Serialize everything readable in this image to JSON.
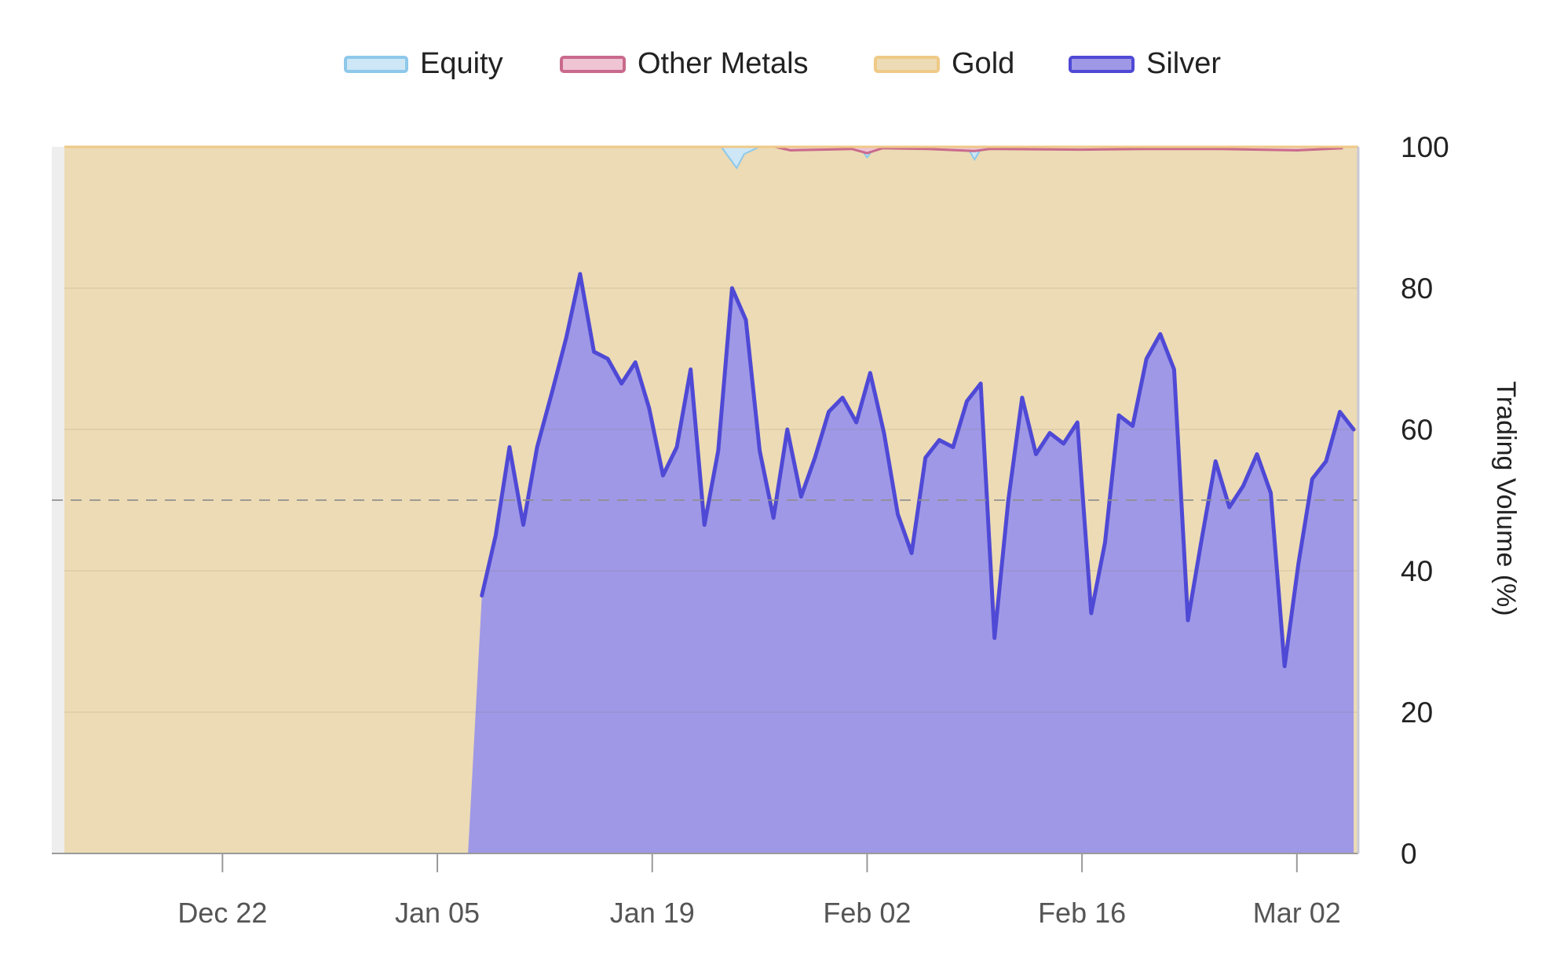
{
  "chart_data": {
    "type": "area",
    "stacked": true,
    "ylabel": "Trading Volume (%)",
    "ylim": [
      0,
      100
    ],
    "y_ticks": [
      "0",
      "20",
      "40",
      "60",
      "80",
      "100"
    ],
    "x_ticks": [
      "Dec 22",
      "Jan 05",
      "Jan 19",
      "Feb 02",
      "Feb 16",
      "Mar 02"
    ],
    "x_range": [
      "Dec 12",
      "Mar 12"
    ],
    "reference_line": 50,
    "legend_position": "top-center",
    "series": [
      {
        "name": "Equity",
        "color": "#8ec8ea",
        "fill": "#cde7f6",
        "points": [
          [
            42.5,
            0
          ],
          [
            43,
            1.5
          ],
          [
            43.5,
            3
          ],
          [
            44,
            1
          ],
          [
            45,
            0
          ],
          [
            46.5,
            0
          ],
          [
            51.5,
            0
          ],
          [
            52,
            1.5
          ],
          [
            52.5,
            0
          ],
          [
            58.5,
            0
          ],
          [
            59,
            1.8
          ],
          [
            59.5,
            0
          ],
          [
            79.5,
            0
          ],
          [
            80,
            0.6
          ],
          [
            80.5,
            0
          ]
        ]
      },
      {
        "name": "Other Metals",
        "color": "#c96a8c",
        "fill": "#efc4d3",
        "points": [
          [
            46,
            0
          ],
          [
            47,
            0.5
          ],
          [
            49,
            0.4
          ],
          [
            51,
            0.3
          ],
          [
            52,
            0.9
          ],
          [
            53,
            0.2
          ],
          [
            56,
            0.3
          ],
          [
            59,
            0.6
          ],
          [
            60,
            0.3
          ],
          [
            66,
            0.4
          ],
          [
            70,
            0.3
          ],
          [
            75,
            0.3
          ],
          [
            80,
            0.5
          ],
          [
            83,
            0.2
          ]
        ]
      },
      {
        "name": "Gold",
        "color": "#efc987",
        "fill": "#ecdbb5"
      },
      {
        "name": "Silver",
        "color": "#4f49d6",
        "fill": "#9f98e6",
        "points": [
          [
            26,
            0
          ],
          [
            26.9,
            36.5
          ],
          [
            27.8,
            45
          ],
          [
            28.7,
            57.5
          ],
          [
            29.6,
            46.5
          ],
          [
            30.5,
            57.5
          ],
          [
            31.5,
            65.5
          ],
          [
            32.4,
            73
          ],
          [
            33.3,
            82
          ],
          [
            34.2,
            71
          ],
          [
            35.1,
            70
          ],
          [
            36,
            66.5
          ],
          [
            36.9,
            69.5
          ],
          [
            37.8,
            63
          ],
          [
            38.7,
            53.5
          ],
          [
            39.6,
            57.5
          ],
          [
            40.5,
            68.5
          ],
          [
            41.4,
            46.5
          ],
          [
            42.3,
            57
          ],
          [
            43.2,
            80
          ],
          [
            44.1,
            75.5
          ],
          [
            45,
            57
          ],
          [
            45.9,
            47.5
          ],
          [
            46.8,
            60
          ],
          [
            47.7,
            50.5
          ],
          [
            48.6,
            56
          ],
          [
            49.5,
            62.5
          ],
          [
            50.4,
            64.5
          ],
          [
            51.3,
            61
          ],
          [
            52.2,
            68
          ],
          [
            53.1,
            59.5
          ],
          [
            54,
            48
          ],
          [
            54.9,
            42.5
          ],
          [
            55.8,
            56
          ],
          [
            56.7,
            58.5
          ],
          [
            57.6,
            57.5
          ],
          [
            58.5,
            64
          ],
          [
            59.4,
            66.5
          ],
          [
            60.3,
            30.5
          ],
          [
            61.2,
            50
          ],
          [
            62.1,
            64.5
          ],
          [
            63,
            56.5
          ],
          [
            63.9,
            59.5
          ],
          [
            64.8,
            58
          ],
          [
            65.7,
            61
          ],
          [
            66.6,
            34
          ],
          [
            67.5,
            44
          ],
          [
            68.4,
            62
          ],
          [
            69.3,
            60.5
          ],
          [
            70.2,
            70
          ],
          [
            71.1,
            73.5
          ],
          [
            72,
            68.5
          ],
          [
            72.9,
            33
          ],
          [
            73.8,
            44.5
          ],
          [
            74.7,
            55.5
          ],
          [
            75.6,
            49
          ],
          [
            76.5,
            52
          ],
          [
            77.4,
            56.5
          ],
          [
            78.3,
            51
          ],
          [
            79.2,
            26.5
          ],
          [
            80.1,
            41
          ],
          [
            81,
            53
          ],
          [
            81.9,
            55.5
          ],
          [
            82.8,
            62.5
          ],
          [
            83.7,
            60
          ]
        ]
      }
    ]
  }
}
